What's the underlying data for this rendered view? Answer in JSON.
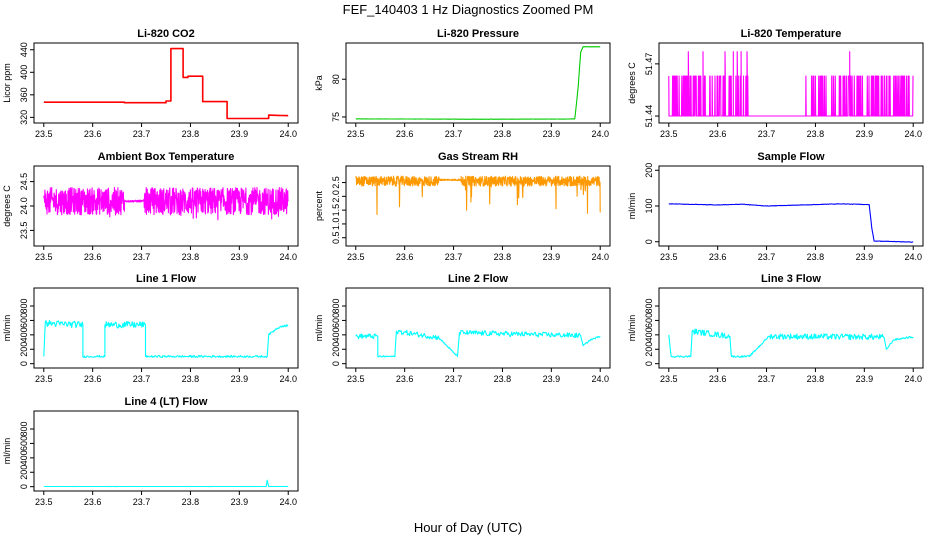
{
  "figure": {
    "title": "FEF_140403  1 Hz Diagnostics Zoomed PM",
    "xlabel": "Hour of Day (UTC)"
  },
  "chart_data": [
    {
      "type": "line",
      "title": "Li-820 CO2",
      "ylabel": "Licor ppm",
      "color": "#ff0000",
      "xlim": [
        23.48,
        24.02
      ],
      "ylim": [
        310,
        452
      ],
      "xticks": [
        "23.5",
        "23.6",
        "23.7",
        "23.8",
        "23.9",
        "24.0"
      ],
      "yticks": [
        "320",
        "360",
        "400",
        "440"
      ],
      "x": [
        23.5,
        23.665,
        23.665,
        23.75,
        23.75,
        23.76,
        23.76,
        23.785,
        23.785,
        23.795,
        23.795,
        23.825,
        23.825,
        23.875,
        23.875,
        23.96,
        23.96,
        24.0
      ],
      "y": [
        347,
        347,
        346,
        346,
        349,
        349,
        442,
        442,
        391,
        391,
        393,
        393,
        348,
        348,
        318,
        318,
        324,
        323
      ],
      "noise": 0
    },
    {
      "type": "line",
      "title": "Li-820 Pressure",
      "ylabel": "kPa",
      "color": "#00cc00",
      "xlim": [
        23.48,
        24.02
      ],
      "ylim": [
        74.2,
        84.8
      ],
      "xticks": [
        "23.5",
        "23.6",
        "23.7",
        "23.8",
        "23.9",
        "24.0"
      ],
      "yticks": [
        "75",
        "80"
      ],
      "x": [
        23.5,
        23.75,
        23.93,
        23.948,
        23.955,
        23.96,
        23.965,
        24.0
      ],
      "y": [
        74.75,
        74.7,
        74.72,
        74.75,
        79,
        83.6,
        84.3,
        84.3
      ],
      "noise": 0.04
    },
    {
      "type": "step-binary",
      "title": "Li-820 Temperature",
      "ylabel": "degrees C",
      "color": "#ff00ff",
      "xlim": [
        23.48,
        24.02
      ],
      "ylim": [
        51.436,
        51.482
      ],
      "xticks": [
        "23.5",
        "23.6",
        "23.7",
        "23.8",
        "23.9",
        "24.0"
      ],
      "yticks": [
        "51.44",
        "51.47"
      ],
      "levels": [
        51.44,
        51.463,
        51.477
      ],
      "spikes_high": [
        23.54,
        23.57,
        23.615,
        23.632,
        23.64,
        23.648,
        23.66,
        23.87
      ],
      "spikes_mid_ranges": [
        [
          23.5,
          23.665
        ],
        [
          23.775,
          24.0
        ]
      ]
    },
    {
      "type": "noisy",
      "title": "Ambient Box Temperature",
      "ylabel": "degrees C",
      "color": "#ff00ff",
      "xlim": [
        23.48,
        24.02
      ],
      "ylim": [
        23.18,
        24.82
      ],
      "xticks": [
        "23.5",
        "23.6",
        "23.7",
        "23.8",
        "23.9",
        "24.0"
      ],
      "yticks": [
        "23.5",
        "24.0",
        "24.5"
      ],
      "segments": [
        {
          "x0": 23.5,
          "x1": 23.665,
          "center": 24.1,
          "amp": 0.28,
          "dip": 0.45
        },
        {
          "x0": 23.665,
          "x1": 23.705,
          "center": 24.1,
          "amp": 0.02,
          "dip": 0
        },
        {
          "x0": 23.705,
          "x1": 24.0,
          "center": 24.1,
          "amp": 0.28,
          "dip": 0.4
        }
      ]
    },
    {
      "type": "noisy",
      "title": "Gas Stream RH",
      "ylabel": "percent",
      "color": "#ff9900",
      "xlim": [
        23.48,
        24.02
      ],
      "ylim": [
        0.2,
        3.1
      ],
      "xticks": [
        "23.5",
        "23.6",
        "23.7",
        "23.8",
        "23.9",
        "24.0"
      ],
      "yticks": [
        "0.5",
        "1.0",
        "1.5",
        "2.0",
        "2.5"
      ],
      "segments": [
        {
          "x0": 23.5,
          "x1": 23.67,
          "center": 2.55,
          "amp": 0.18,
          "dip": 1.8
        },
        {
          "x0": 23.67,
          "x1": 23.715,
          "center": 2.6,
          "amp": 0.03,
          "dip": 0
        },
        {
          "x0": 23.715,
          "x1": 24.0,
          "center": 2.55,
          "amp": 0.18,
          "dip": 1.2
        }
      ]
    },
    {
      "type": "line",
      "title": "Sample Flow",
      "ylabel": "ml/min",
      "color": "#0000ff",
      "xlim": [
        23.48,
        24.02
      ],
      "ylim": [
        -12,
        212
      ],
      "xticks": [
        "23.5",
        "23.6",
        "23.7",
        "23.8",
        "23.9",
        "24.0"
      ],
      "yticks": [
        "0",
        "100",
        "200"
      ],
      "x": [
        23.5,
        23.6,
        23.65,
        23.7,
        23.8,
        23.85,
        23.91,
        23.915,
        23.92,
        24.0
      ],
      "y": [
        106,
        103,
        105,
        100,
        104,
        106,
        104,
        40,
        2,
        -1
      ],
      "noise": 2
    },
    {
      "type": "line",
      "title": "Line 1 Flow",
      "ylabel": "ml/min",
      "color": "#00ffff",
      "xlim": [
        23.48,
        24.02
      ],
      "ylim": [
        -60,
        1050
      ],
      "xticks": [
        "23.5",
        "23.6",
        "23.7",
        "23.8",
        "23.9",
        "24.0"
      ],
      "yticks": [
        "0",
        "200",
        "400",
        "600",
        "800"
      ],
      "x": [
        23.5,
        23.503,
        23.58,
        23.58,
        23.625,
        23.625,
        23.708,
        23.708,
        23.957,
        23.96,
        23.975,
        23.985,
        24.0
      ],
      "y": [
        100,
        560,
        540,
        100,
        100,
        540,
        540,
        100,
        100,
        400,
        480,
        520,
        530
      ],
      "noisy_ranges": [
        [
          23.503,
          23.58
        ],
        [
          23.625,
          23.708
        ]
      ],
      "noise": 45
    },
    {
      "type": "line",
      "title": "Line 2 Flow",
      "ylabel": "ml/min",
      "color": "#00ffff",
      "xlim": [
        23.48,
        24.02
      ],
      "ylim": [
        -60,
        1050
      ],
      "xticks": [
        "23.5",
        "23.6",
        "23.7",
        "23.8",
        "23.9",
        "24.0"
      ],
      "yticks": [
        "0",
        "200",
        "400",
        "600",
        "800"
      ],
      "x": [
        23.5,
        23.545,
        23.545,
        23.58,
        23.583,
        23.67,
        23.708,
        23.712,
        23.96,
        23.965,
        23.98,
        24.0
      ],
      "y": [
        380,
        380,
        100,
        100,
        450,
        360,
        100,
        430,
        390,
        250,
        330,
        380
      ],
      "noisy_ranges": [
        [
          23.5,
          23.545
        ],
        [
          23.583,
          23.67
        ],
        [
          23.712,
          23.96
        ]
      ],
      "noise": 35
    },
    {
      "type": "line",
      "title": "Line 3 Flow",
      "ylabel": "ml/min",
      "color": "#00ffff",
      "xlim": [
        23.48,
        24.02
      ],
      "ylim": [
        -60,
        1050
      ],
      "xticks": [
        "23.5",
        "23.6",
        "23.7",
        "23.8",
        "23.9",
        "24.0"
      ],
      "yticks": [
        "0",
        "200",
        "400",
        "600",
        "800"
      ],
      "x": [
        23.5,
        23.505,
        23.545,
        23.548,
        23.625,
        23.628,
        23.665,
        23.705,
        23.94,
        23.945,
        23.96,
        23.985,
        24.0
      ],
      "y": [
        400,
        100,
        100,
        450,
        380,
        100,
        100,
        380,
        370,
        200,
        330,
        360,
        370
      ],
      "noisy_ranges": [
        [
          23.548,
          23.625
        ],
        [
          23.705,
          23.94
        ]
      ],
      "noise": 40
    },
    {
      "type": "line",
      "title": "Line 4 (LT) Flow",
      "ylabel": "ml/min",
      "color": "#00ffff",
      "xlim": [
        23.48,
        24.02
      ],
      "ylim": [
        -60,
        1050
      ],
      "xticks": [
        "23.5",
        "23.6",
        "23.7",
        "23.8",
        "23.9",
        "24.0"
      ],
      "yticks": [
        "0",
        "200",
        "400",
        "600",
        "800"
      ],
      "x": [
        23.5,
        23.955,
        23.957,
        23.96,
        24.0
      ],
      "y": [
        2,
        2,
        90,
        3,
        3
      ],
      "noise": 1
    }
  ]
}
